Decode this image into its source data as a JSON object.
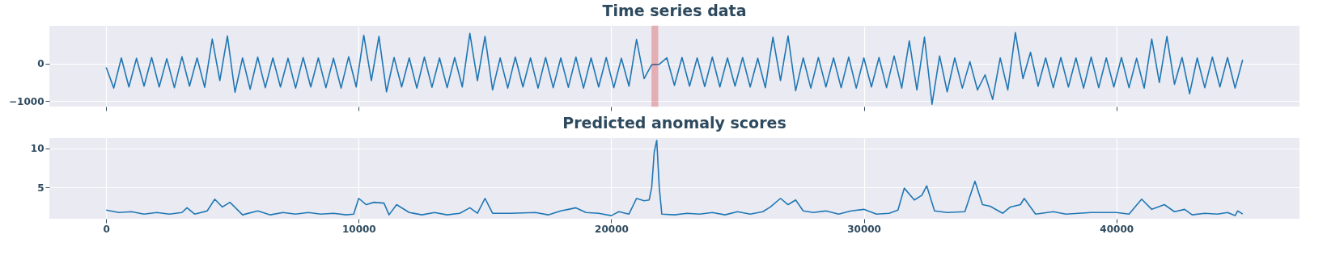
{
  "chart_data": [
    {
      "type": "line",
      "title": "Time series data",
      "tick_labels": "y",
      "grid": true,
      "xlim": [
        -2250,
        47250
      ],
      "xticks": [
        0,
        10000,
        20000,
        30000,
        40000
      ],
      "ylim": [
        -1140,
        1000
      ],
      "yticks": [
        -1000,
        0
      ],
      "bands": [
        {
          "axis": "x",
          "from": 21600,
          "to": 21850,
          "color": "#d62728"
        }
      ],
      "x": [
        0,
        300,
        600,
        900,
        1200,
        1500,
        1800,
        2100,
        2400,
        2700,
        3000,
        3300,
        3600,
        3900,
        4200,
        4500,
        4800,
        5100,
        5400,
        5700,
        6000,
        6300,
        6600,
        6900,
        7200,
        7500,
        7800,
        8100,
        8400,
        8700,
        9000,
        9300,
        9600,
        9900,
        10200,
        10500,
        10800,
        11100,
        11400,
        11700,
        12000,
        12300,
        12600,
        12900,
        13200,
        13500,
        13800,
        14100,
        14400,
        14700,
        15000,
        15300,
        15600,
        15900,
        16200,
        16500,
        16800,
        17100,
        17400,
        17700,
        18000,
        18300,
        18600,
        18900,
        19200,
        19500,
        19800,
        20100,
        20400,
        20700,
        21000,
        21300,
        21600,
        21900,
        22200,
        22500,
        22800,
        23100,
        23400,
        23700,
        24000,
        24300,
        24600,
        24900,
        25200,
        25500,
        25800,
        26100,
        26400,
        26700,
        27000,
        27300,
        27600,
        27900,
        28200,
        28500,
        28800,
        29100,
        29400,
        29700,
        30000,
        30300,
        30600,
        30900,
        31200,
        31500,
        31800,
        32100,
        32400,
        32700,
        33000,
        33300,
        33600,
        33900,
        34200,
        34500,
        34800,
        35100,
        35400,
        35700,
        36000,
        36300,
        36600,
        36900,
        37200,
        37500,
        37800,
        38100,
        38400,
        38700,
        39000,
        39300,
        39600,
        39900,
        40200,
        40500,
        40800,
        41100,
        41400,
        41700,
        42000,
        42300,
        42600,
        42900,
        43200,
        43500,
        43800,
        44100,
        44400,
        44700,
        45000
      ],
      "series": [
        {
          "color": "#1f77b4",
          "values": [
            -100,
            -650,
            150,
            -620,
            140,
            -600,
            160,
            -620,
            130,
            -640,
            180,
            -600,
            150,
            -630,
            650,
            -450,
            730,
            -760,
            150,
            -680,
            170,
            -640,
            150,
            -620,
            140,
            -650,
            160,
            -620,
            150,
            -640,
            140,
            -650,
            180,
            -620,
            750,
            -450,
            720,
            -750,
            160,
            -620,
            150,
            -650,
            170,
            -630,
            150,
            -640,
            160,
            -620,
            800,
            -450,
            720,
            -700,
            150,
            -650,
            170,
            -620,
            150,
            -650,
            160,
            -640,
            150,
            -630,
            170,
            -650,
            150,
            -620,
            160,
            -640,
            140,
            -600,
            640,
            -400,
            -30,
            -20,
            150,
            -580,
            160,
            -600,
            150,
            -610,
            170,
            -620,
            150,
            -600,
            160,
            -620,
            140,
            -640,
            700,
            -450,
            730,
            -720,
            150,
            -650,
            160,
            -620,
            150,
            -640,
            170,
            -650,
            150,
            -620,
            160,
            -640,
            200,
            -650,
            600,
            -700,
            700,
            -1080,
            200,
            -750,
            150,
            -650,
            50,
            -700,
            -300,
            -950,
            150,
            -700,
            820,
            -400,
            300,
            -600,
            150,
            -640,
            160,
            -620,
            150,
            -650,
            170,
            -640,
            150,
            -620,
            160,
            -640,
            140,
            -650,
            650,
            -500,
            720,
            -550,
            160,
            -800,
            150,
            -640,
            170,
            -620,
            160,
            -650,
            100
          ]
        }
      ]
    },
    {
      "type": "line",
      "title": "Predicted anomaly scores",
      "grid": true,
      "xlim": [
        -2250,
        47250
      ],
      "xticks": [
        0,
        10000,
        20000,
        30000,
        40000
      ],
      "ylim": [
        1.0,
        11.3
      ],
      "yticks": [
        5,
        10
      ],
      "x": [
        0,
        500,
        1000,
        1500,
        2000,
        2500,
        3000,
        3200,
        3500,
        4000,
        4300,
        4600,
        4900,
        5400,
        6000,
        6500,
        7000,
        7500,
        8000,
        8500,
        9000,
        9500,
        9800,
        10000,
        10300,
        10600,
        11000,
        11200,
        11500,
        12000,
        12500,
        13000,
        13500,
        14000,
        14400,
        14700,
        15000,
        15300,
        16000,
        17000,
        17500,
        18000,
        18300,
        18600,
        19000,
        19500,
        20000,
        20300,
        20700,
        21000,
        21300,
        21500,
        21600,
        21700,
        21800,
        21900,
        22000,
        22500,
        23000,
        23500,
        24000,
        24500,
        25000,
        25500,
        26000,
        26300,
        26700,
        27000,
        27300,
        27600,
        28000,
        28500,
        29000,
        29500,
        30000,
        30500,
        31000,
        31350,
        31600,
        32000,
        32300,
        32490,
        32800,
        33300,
        34000,
        34400,
        34700,
        35000,
        35500,
        35800,
        36200,
        36350,
        36800,
        37500,
        38000,
        39000,
        40000,
        40500,
        41000,
        41400,
        41900,
        42300,
        42700,
        43000,
        43500,
        44000,
        44400,
        44700,
        44800,
        45000
      ],
      "series": [
        {
          "color": "#1f77b4",
          "values": [
            2.1,
            1.8,
            1.9,
            1.6,
            1.8,
            1.6,
            1.8,
            2.4,
            1.6,
            2.0,
            3.5,
            2.5,
            3.1,
            1.5,
            2.0,
            1.5,
            1.8,
            1.6,
            1.8,
            1.6,
            1.7,
            1.5,
            1.6,
            3.6,
            2.8,
            3.1,
            3.0,
            1.5,
            2.8,
            1.8,
            1.5,
            1.8,
            1.5,
            1.7,
            2.4,
            1.7,
            3.6,
            1.7,
            1.7,
            1.8,
            1.5,
            2.0,
            2.2,
            2.4,
            1.8,
            1.7,
            1.4,
            1.9,
            1.6,
            3.6,
            3.3,
            3.4,
            5.0,
            9.5,
            11.0,
            5.0,
            1.6,
            1.5,
            1.7,
            1.6,
            1.8,
            1.5,
            1.9,
            1.6,
            1.9,
            2.5,
            3.6,
            2.8,
            3.4,
            2.0,
            1.8,
            2.0,
            1.6,
            2.0,
            2.2,
            1.6,
            1.7,
            2.1,
            4.9,
            3.4,
            4.0,
            5.2,
            2.0,
            1.8,
            1.9,
            5.8,
            2.8,
            2.6,
            1.7,
            2.5,
            2.8,
            3.6,
            1.6,
            1.9,
            1.6,
            1.8,
            1.8,
            1.6,
            3.5,
            2.2,
            2.8,
            1.9,
            2.2,
            1.5,
            1.7,
            1.6,
            1.8,
            1.4,
            2.0,
            1.6
          ]
        }
      ]
    }
  ]
}
